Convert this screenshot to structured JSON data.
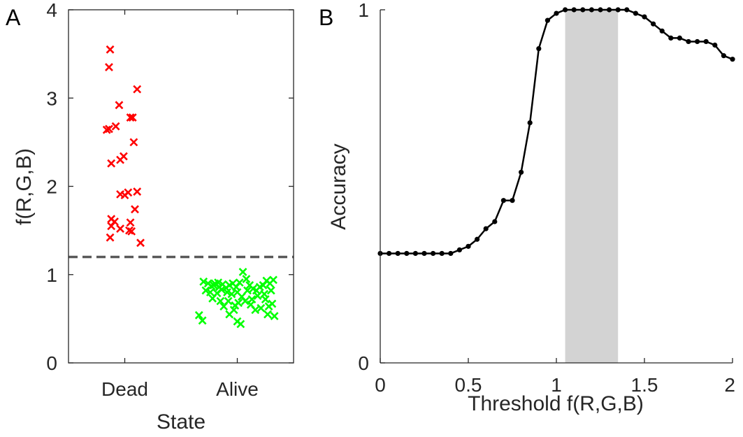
{
  "chart_data": [
    {
      "panel": "A",
      "type": "scatter",
      "xlabel": "State",
      "ylabel": "f(R,G,B)",
      "categories": [
        "Dead",
        "Alive"
      ],
      "ylim": [
        0,
        4
      ],
      "yticks": [
        "0",
        "1",
        "2",
        "3",
        "4"
      ],
      "threshold_line": 1.2,
      "threshold_color": "#595959",
      "series": [
        {
          "name": "Dead",
          "color": "#ff0000",
          "points": [
            {
              "x": 0.87,
              "y": 3.55
            },
            {
              "x": 0.86,
              "y": 3.35
            },
            {
              "x": 1.11,
              "y": 3.1
            },
            {
              "x": 0.95,
              "y": 2.92
            },
            {
              "x": 1.05,
              "y": 2.78
            },
            {
              "x": 1.07,
              "y": 2.78
            },
            {
              "x": 0.92,
              "y": 2.68
            },
            {
              "x": 0.86,
              "y": 2.65
            },
            {
              "x": 0.84,
              "y": 2.64
            },
            {
              "x": 1.08,
              "y": 2.5
            },
            {
              "x": 0.99,
              "y": 2.34
            },
            {
              "x": 0.96,
              "y": 2.3
            },
            {
              "x": 0.88,
              "y": 2.26
            },
            {
              "x": 1.11,
              "y": 1.94
            },
            {
              "x": 1.03,
              "y": 1.93
            },
            {
              "x": 0.96,
              "y": 1.91
            },
            {
              "x": 1.0,
              "y": 1.9
            },
            {
              "x": 1.09,
              "y": 1.74
            },
            {
              "x": 0.88,
              "y": 1.63
            },
            {
              "x": 0.91,
              "y": 1.6
            },
            {
              "x": 1.05,
              "y": 1.59
            },
            {
              "x": 0.88,
              "y": 1.55
            },
            {
              "x": 0.96,
              "y": 1.52
            },
            {
              "x": 1.04,
              "y": 1.5
            },
            {
              "x": 1.06,
              "y": 1.49
            },
            {
              "x": 0.87,
              "y": 1.42
            },
            {
              "x": 1.14,
              "y": 1.36
            }
          ]
        },
        {
          "name": "Alive",
          "color": "#00ff00",
          "points": [
            {
              "x": 1.7,
              "y": 0.92
            },
            {
              "x": 1.74,
              "y": 0.9
            },
            {
              "x": 1.77,
              "y": 0.87
            },
            {
              "x": 1.8,
              "y": 0.9
            },
            {
              "x": 1.84,
              "y": 0.86
            },
            {
              "x": 1.87,
              "y": 0.89
            },
            {
              "x": 1.9,
              "y": 0.85
            },
            {
              "x": 1.93,
              "y": 0.88
            },
            {
              "x": 1.96,
              "y": 0.9
            },
            {
              "x": 1.99,
              "y": 0.86
            },
            {
              "x": 2.02,
              "y": 0.91
            },
            {
              "x": 2.05,
              "y": 1.03
            },
            {
              "x": 2.08,
              "y": 0.95
            },
            {
              "x": 2.11,
              "y": 0.88
            },
            {
              "x": 2.14,
              "y": 0.84
            },
            {
              "x": 2.17,
              "y": 0.82
            },
            {
              "x": 2.2,
              "y": 0.86
            },
            {
              "x": 2.23,
              "y": 0.88
            },
            {
              "x": 2.26,
              "y": 0.93
            },
            {
              "x": 2.29,
              "y": 0.9
            },
            {
              "x": 2.32,
              "y": 0.94
            },
            {
              "x": 1.72,
              "y": 0.82
            },
            {
              "x": 1.76,
              "y": 0.8
            },
            {
              "x": 1.82,
              "y": 0.79
            },
            {
              "x": 1.86,
              "y": 0.83
            },
            {
              "x": 1.91,
              "y": 0.8
            },
            {
              "x": 1.95,
              "y": 0.78
            },
            {
              "x": 2.0,
              "y": 0.8
            },
            {
              "x": 2.04,
              "y": 0.75
            },
            {
              "x": 2.09,
              "y": 0.82
            },
            {
              "x": 2.13,
              "y": 0.72
            },
            {
              "x": 2.18,
              "y": 0.76
            },
            {
              "x": 2.24,
              "y": 0.78
            },
            {
              "x": 2.3,
              "y": 0.82
            },
            {
              "x": 1.78,
              "y": 0.73
            },
            {
              "x": 1.85,
              "y": 0.7
            },
            {
              "x": 1.88,
              "y": 0.64
            },
            {
              "x": 1.92,
              "y": 0.7
            },
            {
              "x": 1.98,
              "y": 0.65
            },
            {
              "x": 2.01,
              "y": 0.68
            },
            {
              "x": 2.07,
              "y": 0.7
            },
            {
              "x": 2.12,
              "y": 0.66
            },
            {
              "x": 2.16,
              "y": 0.6
            },
            {
              "x": 2.21,
              "y": 0.62
            },
            {
              "x": 2.28,
              "y": 0.64
            },
            {
              "x": 2.31,
              "y": 0.67
            },
            {
              "x": 1.66,
              "y": 0.54
            },
            {
              "x": 1.69,
              "y": 0.48
            },
            {
              "x": 1.93,
              "y": 0.55
            },
            {
              "x": 1.97,
              "y": 0.6
            },
            {
              "x": 2.0,
              "y": 0.47
            },
            {
              "x": 2.03,
              "y": 0.44
            },
            {
              "x": 2.27,
              "y": 0.55
            },
            {
              "x": 2.33,
              "y": 0.53
            },
            {
              "x": 1.79,
              "y": 0.88
            },
            {
              "x": 1.83,
              "y": 0.91
            },
            {
              "x": 2.25,
              "y": 0.72
            }
          ]
        }
      ]
    },
    {
      "panel": "B",
      "type": "line",
      "xlabel": "Threshold f(R,G,B)",
      "ylabel": "Accuracy",
      "xlim": [
        0,
        2
      ],
      "ylim": [
        0,
        1
      ],
      "xticks": [
        "0",
        "0.5",
        "1",
        "1.5",
        "2"
      ],
      "yticks": [
        "0",
        "1"
      ],
      "shaded_region": [
        1.05,
        1.35
      ],
      "shade_color": "#d3d3d3",
      "line_color": "#000000",
      "x": [
        0,
        0.05,
        0.1,
        0.15,
        0.2,
        0.25,
        0.3,
        0.35,
        0.4,
        0.45,
        0.5,
        0.55,
        0.6,
        0.65,
        0.7,
        0.75,
        0.8,
        0.85,
        0.9,
        0.95,
        1.0,
        1.05,
        1.1,
        1.15,
        1.2,
        1.25,
        1.3,
        1.35,
        1.4,
        1.45,
        1.5,
        1.55,
        1.6,
        1.65,
        1.7,
        1.75,
        1.8,
        1.85,
        1.9,
        1.95,
        2.0
      ],
      "y": [
        0.31,
        0.31,
        0.31,
        0.31,
        0.31,
        0.31,
        0.31,
        0.31,
        0.31,
        0.32,
        0.33,
        0.35,
        0.38,
        0.4,
        0.46,
        0.46,
        0.54,
        0.68,
        0.89,
        0.97,
        0.99,
        1.0,
        1.0,
        1.0,
        1.0,
        1.0,
        1.0,
        1.0,
        1.0,
        0.99,
        0.98,
        0.96,
        0.94,
        0.92,
        0.92,
        0.91,
        0.91,
        0.91,
        0.9,
        0.87,
        0.86
      ]
    }
  ],
  "labels": {
    "panel_a": "A",
    "panel_b": "B"
  }
}
